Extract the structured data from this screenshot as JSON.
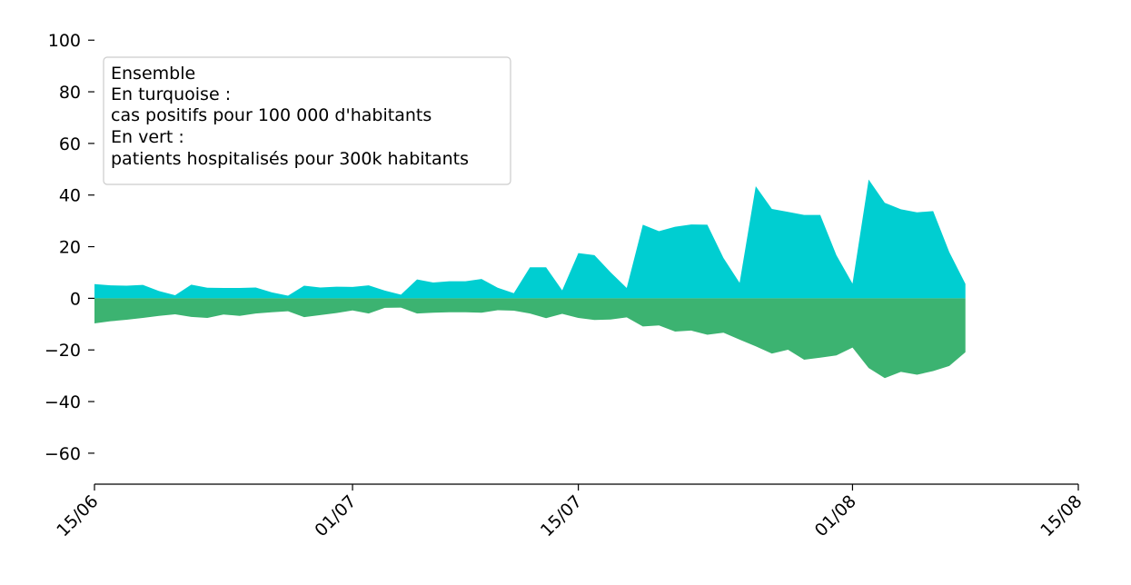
{
  "chart_data": {
    "type": "area",
    "x": [
      "2020-06-15",
      "2020-06-16",
      "2020-06-17",
      "2020-06-18",
      "2020-06-19",
      "2020-06-20",
      "2020-06-21",
      "2020-06-22",
      "2020-06-23",
      "2020-06-24",
      "2020-06-25",
      "2020-06-26",
      "2020-06-27",
      "2020-06-28",
      "2020-06-29",
      "2020-06-30",
      "2020-07-01",
      "2020-07-02",
      "2020-07-03",
      "2020-07-04",
      "2020-07-05",
      "2020-07-06",
      "2020-07-07",
      "2020-07-08",
      "2020-07-09",
      "2020-07-10",
      "2020-07-11",
      "2020-07-12",
      "2020-07-13",
      "2020-07-14",
      "2020-07-15",
      "2020-07-16",
      "2020-07-17",
      "2020-07-18",
      "2020-07-19",
      "2020-07-20",
      "2020-07-21",
      "2020-07-22",
      "2020-07-23",
      "2020-07-24",
      "2020-07-25",
      "2020-07-26",
      "2020-07-27",
      "2020-07-28",
      "2020-07-29",
      "2020-07-30",
      "2020-07-31",
      "2020-08-01",
      "2020-08-02",
      "2020-08-03",
      "2020-08-04",
      "2020-08-05",
      "2020-08-06",
      "2020-08-07",
      "2020-08-08"
    ],
    "series": [
      {
        "color": "#00CED1",
        "values": [
          5.5,
          5,
          4.9,
          5.2,
          2.8,
          1.2,
          5.3,
          4.1,
          4,
          4,
          4.2,
          2.3,
          1,
          4.9,
          4.2,
          4.5,
          4.4,
          5,
          3,
          1.4,
          7.3,
          6.1,
          6.6,
          6.6,
          7.5,
          4.1,
          2,
          12,
          12,
          3.1,
          17.5,
          16.7,
          10.1,
          4,
          28.5,
          26,
          27.7,
          28.6,
          28.5,
          15.6,
          6,
          43.4,
          34.6,
          33.5,
          32.3,
          32.3,
          16.7,
          5.7,
          46,
          37,
          34.5,
          33.3,
          33.8,
          17.9,
          5.6
        ]
      },
      {
        "color": "#3CB371",
        "values": [
          -9.7,
          -8.9,
          -8.3,
          -7.6,
          -6.8,
          -6.2,
          -7.2,
          -7.6,
          -6.3,
          -6.8,
          -5.9,
          -5.4,
          -5,
          -7.3,
          -6.5,
          -5.7,
          -4.7,
          -5.9,
          -3.7,
          -3.6,
          -5.9,
          -5.6,
          -5.4,
          -5.4,
          -5.6,
          -4.6,
          -4.8,
          -5.9,
          -7.7,
          -6,
          -7.6,
          -8.4,
          -8.2,
          -7.4,
          -10.9,
          -10.5,
          -12.9,
          -12.5,
          -14.1,
          -13.3,
          -16,
          -18.6,
          -21.4,
          -19.9,
          -23.8,
          -23,
          -22.1,
          -19.1,
          -27,
          -30.9,
          -28.5,
          -29.6,
          -28.2,
          -26.2,
          -20.9
        ]
      }
    ],
    "ylim": [
      -72,
      105
    ],
    "yticks": [
      100,
      80,
      60,
      40,
      20,
      0,
      -20,
      -40,
      -60
    ],
    "ytick_labels": [
      "100",
      "80",
      "60",
      "40",
      "20",
      "0",
      "−20",
      "−40",
      "−60"
    ],
    "xlim": [
      "2020-06-15",
      "2020-08-15"
    ],
    "xticks": [
      "2020-06-15",
      "2020-07-01",
      "2020-07-15",
      "2020-08-01",
      "2020-08-15"
    ],
    "xtick_labels": [
      "15/06",
      "01/07",
      "15/07",
      "01/08",
      "15/08"
    ],
    "legend_lines": [
      "Ensemble",
      "En turquoise :",
      "cas positifs pour 100 000 d'habitants",
      "En vert :",
      "patients hospitalisés pour 300k habitants"
    ],
    "legend_placement": "top-left",
    "grid": false
  }
}
